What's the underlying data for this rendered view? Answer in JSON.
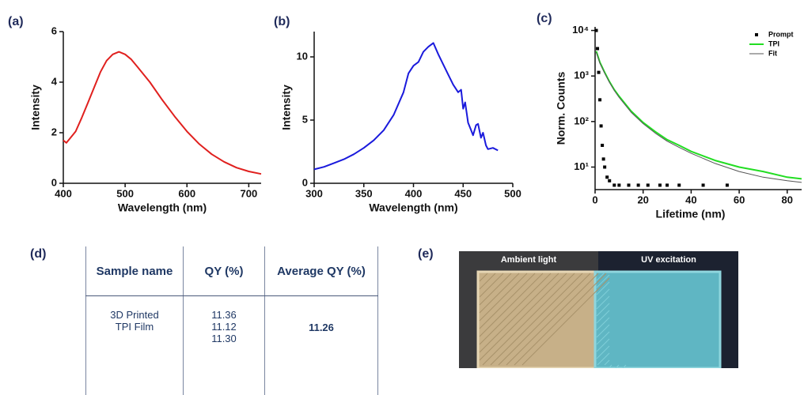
{
  "chart_data": [
    {
      "type": "line",
      "panel": "(a)",
      "x_label": "Wavelength (nm)",
      "y_label": "Intensity",
      "color": "#e0201e",
      "x": [
        400,
        405,
        410,
        420,
        430,
        440,
        450,
        460,
        470,
        480,
        490,
        500,
        510,
        520,
        540,
        560,
        580,
        600,
        620,
        640,
        660,
        680,
        700,
        720
      ],
      "values": [
        1.7,
        1.6,
        1.75,
        2.05,
        2.6,
        3.2,
        3.8,
        4.4,
        4.85,
        5.1,
        5.2,
        5.1,
        4.9,
        4.6,
        4.0,
        3.3,
        2.65,
        2.05,
        1.55,
        1.15,
        0.85,
        0.62,
        0.47,
        0.37
      ],
      "xlim": [
        400,
        720
      ],
      "xticks": [
        400,
        500,
        600,
        700
      ],
      "ylim": [
        0,
        6
      ],
      "yticks": [
        0,
        2,
        4,
        6
      ]
    },
    {
      "type": "line",
      "panel": "(b)",
      "x_label": "Wavelength (nm)",
      "y_label": "Intensity",
      "color": "#1a1adc",
      "x": [
        300,
        310,
        320,
        330,
        340,
        350,
        360,
        370,
        380,
        390,
        395,
        400,
        405,
        410,
        415,
        420,
        425,
        430,
        435,
        440,
        445,
        448,
        450,
        452,
        455,
        458,
        460,
        463,
        465,
        468,
        470,
        473,
        475,
        480,
        485
      ],
      "values": [
        1.1,
        1.3,
        1.6,
        1.9,
        2.3,
        2.8,
        3.4,
        4.2,
        5.4,
        7.2,
        8.7,
        9.3,
        9.6,
        10.4,
        10.8,
        11.1,
        10.2,
        9.4,
        8.6,
        7.8,
        7.2,
        7.4,
        5.9,
        6.4,
        4.8,
        4.2,
        3.8,
        4.6,
        4.7,
        3.6,
        4.0,
        3.0,
        2.7,
        2.8,
        2.6
      ],
      "xlim": [
        300,
        500
      ],
      "xticks": [
        300,
        350,
        400,
        450,
        500
      ],
      "ylim": [
        0,
        12
      ],
      "yticks": [
        0,
        5,
        10
      ]
    },
    {
      "type": "scatter",
      "panel": "(c)",
      "x_label": "Lifetime (nm)",
      "y_label": "Norm. Counts",
      "log_y": true,
      "legend": "top-right",
      "xlim": [
        0,
        86
      ],
      "xticks": [
        0,
        20,
        40,
        60,
        80
      ],
      "ylim": [
        3.2,
        12000
      ],
      "yticks": [
        {
          "value": 10,
          "label": "10¹"
        },
        {
          "value": 100,
          "label": "10²"
        },
        {
          "value": 1000,
          "label": "10³"
        },
        {
          "value": 10000,
          "label": "10⁴"
        }
      ],
      "series": [
        {
          "name": "Prompt",
          "style": "markers",
          "color": "#000000",
          "x": [
            0.5,
            1,
            1.5,
            2,
            2.5,
            3,
            3.5,
            4,
            5,
            6,
            8,
            10,
            14,
            18,
            22,
            27,
            30,
            35,
            45,
            55
          ],
          "values": [
            10000,
            4000,
            1200,
            300,
            80,
            30,
            15,
            10,
            6,
            5,
            4,
            4,
            4,
            4,
            4,
            4,
            4,
            4,
            4,
            4
          ]
        },
        {
          "name": "TPI",
          "style": "line",
          "color": "#22dd22",
          "x": [
            0.5,
            2,
            4,
            6,
            8,
            10,
            15,
            20,
            25,
            30,
            35,
            40,
            50,
            60,
            70,
            80,
            86
          ],
          "values": [
            3500,
            2000,
            1200,
            750,
            500,
            360,
            170,
            95,
            60,
            40,
            30,
            22,
            14,
            10,
            8,
            6,
            5.5
          ]
        },
        {
          "name": "Fit",
          "style": "line",
          "color": "#555555",
          "x": [
            0.5,
            2,
            4,
            6,
            8,
            10,
            15,
            20,
            25,
            30,
            35,
            40,
            50,
            60,
            70,
            80,
            86
          ],
          "values": [
            3300,
            1900,
            1150,
            720,
            480,
            340,
            160,
            90,
            56,
            37,
            27,
            20,
            12,
            8,
            6,
            5,
            4.6
          ]
        }
      ]
    }
  ],
  "table": {
    "panel": "(d)",
    "headers": [
      "Sample name",
      "QY (%)",
      "Average QY (%)"
    ],
    "rows": [
      [
        [
          "3D Printed",
          "TPI Film"
        ],
        [
          "11.36",
          "11.12",
          "11.30"
        ],
        "11.26"
      ]
    ]
  },
  "photos": {
    "panel": "(e)",
    "labels": [
      "Ambient light",
      "UV excitation"
    ]
  }
}
